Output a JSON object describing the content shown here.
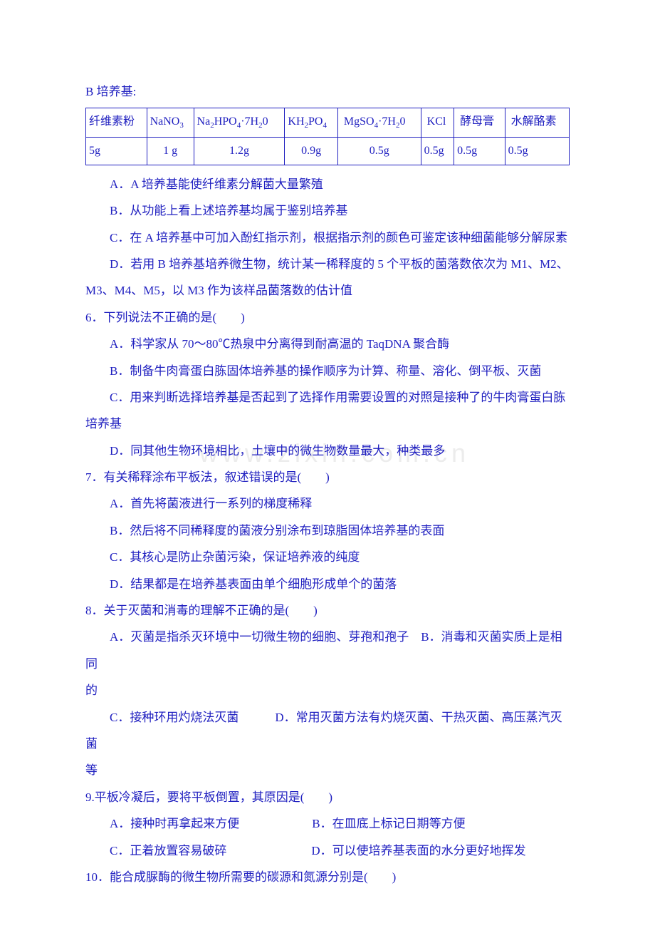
{
  "colors": {
    "text": "#2020c0",
    "border": "#2020c0",
    "background": "#ffffff",
    "watermark": "#ececec"
  },
  "font_size_body": 17,
  "font_size_table": 16,
  "watermark_text": "www.zixin.com.cn",
  "header_b": "B 培养基:",
  "table_b": {
    "headers": [
      "纤维素粉",
      "NaNO₃",
      "Na₂HPO₄ · 7H₂0",
      "KH₂PO₄",
      "MgSO₄ · 7H₂0",
      "KCl",
      "酵母膏",
      "水解酪素"
    ],
    "values": [
      "5g",
      "1 g",
      "1.2g",
      "0.9g",
      "0.5g",
      "0.5g",
      "0.5g",
      "0.5g"
    ]
  },
  "q5": {
    "a": "A．A 培养基能使纤维素分解菌大量繁殖",
    "b": "B．从功能上看上述培养基均属于鉴别培养基",
    "c": "C．在 A 培养基中可加入酚红指示剂，根据指示剂的颜色可鉴定该种细菌能够分解尿素",
    "d1": "D．若用 B 培养基培养微生物，统计某一稀释度的 5 个平板的菌落数依次为 M1、M2、",
    "d2": "M3、M4、M5，以 M3 作为该样品菌落数的估计值"
  },
  "q6": {
    "stem": "6．下列说法不正确的是(　　)",
    "a": "A．科学家从 70～80℃热泉中分离得到耐高温的 TaqDNA 聚合酶",
    "b": "B．制备牛肉膏蛋白胨固体培养基的操作顺序为计算、称量、溶化、倒平板、灭菌",
    "c1": "C．用来判断选择培养基是否起到了选择作用需要设置的对照是接种了的牛肉膏蛋白胨",
    "c2": "培养基",
    "d": "D．同其他生物环境相比，土壤中的微生物数量最大，种类最多"
  },
  "q7": {
    "stem": "7．有关稀释涂布平板法，叙述错误的是(　　)",
    "a": "A．首先将菌液进行一系列的梯度稀释",
    "b": "B．然后将不同稀释度的菌液分别涂布到琼脂固体培养基的表面",
    "c": "C．其核心是防止杂菌污染，保证培养液的纯度",
    "d": "D．结果都是在培养基表面由单个细胞形成单个的菌落"
  },
  "q8": {
    "stem": "8．关于灭菌和消毒的理解不正确的是(　　)",
    "ab1": "A．灭菌是指杀灭环境中一切微生物的细胞、芽孢和孢子　B．消毒和灭菌实质上是相同",
    "ab2": "的",
    "cd1": "C．接种环用灼烧法灭菌　　　D．常用灭菌方法有灼烧灭菌、干热灭菌、高压蒸汽灭菌",
    "cd2": "等"
  },
  "q9": {
    "stem": "9.平板冷凝后，要将平板倒置，其原因是(　　)",
    "a": "A．接种时再拿起来方便",
    "b": "B．在皿底上标记日期等方便",
    "c": "C．正着放置容易破碎",
    "d": "D．可以使培养基表面的水分更好地挥发"
  },
  "q10": {
    "stem": "10．能合成脲酶的微生物所需要的碳源和氮源分别是(　　)"
  }
}
